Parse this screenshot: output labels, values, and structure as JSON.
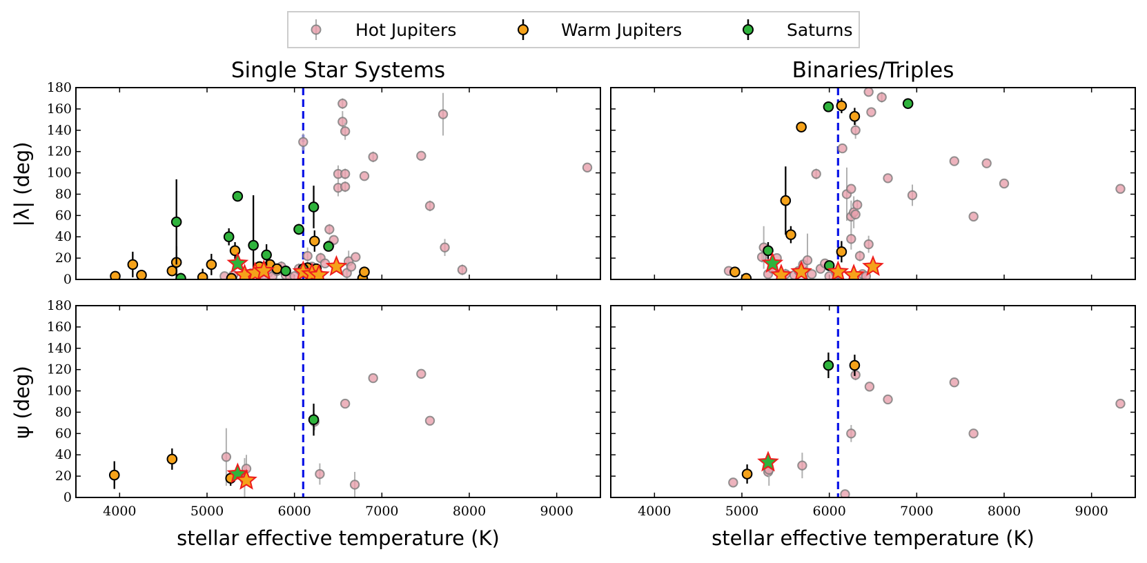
{
  "chart_data": {
    "type": "scatter",
    "legend": {
      "placement": "top-center",
      "entries": [
        {
          "key": "hot",
          "label": "Hot Jupiters",
          "color": "#e8a0ad"
        },
        {
          "key": "warm",
          "label": "Warm Jupiters",
          "color": "#f5a21a"
        },
        {
          "key": "sat",
          "label": "Saturns",
          "color": "#2fb33c"
        }
      ]
    },
    "xlabel": "stellar effective temperature (K)",
    "xlim": [
      3500,
      9500
    ],
    "xticks": [
      "4000",
      "5000",
      "6000",
      "7000",
      "8000",
      "9000"
    ],
    "ylim": [
      0,
      180
    ],
    "yticks": [
      "0",
      "20",
      "40",
      "60",
      "80",
      "100",
      "120",
      "140",
      "160",
      "180"
    ],
    "kraft_break_teff": 6100,
    "panels": [
      {
        "id": "single-lambda",
        "title": "Single Star Systems",
        "ylabel": "|λ| (deg)",
        "hot": [
          [
            5200,
            3,
            0
          ],
          [
            5300,
            4,
            0
          ],
          [
            5450,
            2,
            3
          ],
          [
            5500,
            4,
            0
          ],
          [
            5600,
            5,
            0
          ],
          [
            5650,
            2,
            0
          ],
          [
            5700,
            6,
            0
          ],
          [
            5750,
            3,
            0
          ],
          [
            5800,
            8,
            0
          ],
          [
            5850,
            12,
            5
          ],
          [
            5900,
            4,
            0
          ],
          [
            5950,
            2,
            0
          ],
          [
            6000,
            3,
            0
          ],
          [
            6050,
            10,
            5
          ],
          [
            6100,
            129,
            8
          ],
          [
            6150,
            22,
            8
          ],
          [
            6200,
            12,
            0
          ],
          [
            6250,
            8,
            0
          ],
          [
            6300,
            20,
            5
          ],
          [
            6350,
            15,
            0
          ],
          [
            6400,
            47,
            5
          ],
          [
            6400,
            32,
            0
          ],
          [
            6450,
            37,
            0
          ],
          [
            6500,
            86,
            8
          ],
          [
            6500,
            99,
            8
          ],
          [
            6550,
            148,
            10
          ],
          [
            6550,
            165,
            5
          ],
          [
            6580,
            139,
            8
          ],
          [
            6580,
            87,
            5
          ],
          [
            6580,
            99,
            5
          ],
          [
            6600,
            6,
            15
          ],
          [
            6620,
            17,
            10
          ],
          [
            6650,
            12,
            0
          ],
          [
            6700,
            21,
            0
          ],
          [
            6800,
            97,
            0
          ],
          [
            6900,
            115,
            5
          ],
          [
            7450,
            116,
            0
          ],
          [
            7550,
            69,
            5
          ],
          [
            7700,
            155,
            20
          ],
          [
            7720,
            30,
            8
          ],
          [
            7920,
            9,
            5
          ],
          [
            9350,
            105,
            0
          ]
        ],
        "warm": [
          [
            3950,
            3,
            0
          ],
          [
            4150,
            14,
            12
          ],
          [
            4250,
            4,
            0
          ],
          [
            4600,
            8,
            0
          ],
          [
            4650,
            16,
            15
          ],
          [
            4950,
            2,
            8
          ],
          [
            5050,
            14,
            10
          ],
          [
            5280,
            1,
            3
          ],
          [
            5320,
            27,
            8
          ],
          [
            5500,
            5,
            0
          ],
          [
            5600,
            12,
            0
          ],
          [
            5720,
            14,
            0
          ],
          [
            5800,
            10,
            0
          ],
          [
            6150,
            11,
            0
          ],
          [
            6230,
            36,
            10
          ],
          [
            6250,
            10,
            0
          ],
          [
            6780,
            1,
            0
          ],
          [
            6800,
            7,
            5
          ]
        ],
        "sat": [
          [
            4650,
            54,
            40
          ],
          [
            4700,
            1,
            5
          ],
          [
            5250,
            40,
            8
          ],
          [
            5350,
            78,
            0
          ],
          [
            5530,
            32,
            47
          ],
          [
            5680,
            23,
            10
          ],
          [
            5900,
            8,
            0
          ],
          [
            6050,
            47,
            5
          ],
          [
            6220,
            68,
            20
          ],
          [
            6390,
            31,
            0
          ],
          [
            6100,
            10,
            5
          ]
        ],
        "stars": [
          [
            5350,
            15,
            "sat"
          ],
          [
            5430,
            4,
            "warm"
          ],
          [
            5550,
            6,
            "warm"
          ],
          [
            5650,
            8,
            "warm"
          ],
          [
            6100,
            7,
            "warm"
          ],
          [
            6200,
            5,
            "warm"
          ],
          [
            6280,
            4,
            "warm"
          ],
          [
            6480,
            12,
            "warm"
          ]
        ]
      },
      {
        "id": "binary-lambda",
        "title": "Binaries/Triples",
        "ylabel": "",
        "hot": [
          [
            4850,
            8,
            0
          ],
          [
            5230,
            21,
            5
          ],
          [
            5250,
            30,
            20
          ],
          [
            5300,
            5,
            0
          ],
          [
            5350,
            10,
            5
          ],
          [
            5400,
            20,
            0
          ],
          [
            5500,
            5,
            5
          ],
          [
            5600,
            4,
            0
          ],
          [
            5650,
            8,
            0
          ],
          [
            5700,
            14,
            5
          ],
          [
            5750,
            18,
            25
          ],
          [
            5800,
            5,
            0
          ],
          [
            5850,
            99,
            5
          ],
          [
            5900,
            10,
            0
          ],
          [
            5950,
            15,
            0
          ],
          [
            6000,
            3,
            0
          ],
          [
            6080,
            6,
            0
          ],
          [
            6100,
            5,
            0
          ],
          [
            6150,
            123,
            0
          ],
          [
            6200,
            80,
            25
          ],
          [
            6250,
            85,
            0
          ],
          [
            6250,
            59,
            15
          ],
          [
            6250,
            38,
            10
          ],
          [
            6280,
            63,
            15
          ],
          [
            6300,
            140,
            8
          ],
          [
            6300,
            61,
            0
          ],
          [
            6320,
            70,
            5
          ],
          [
            6350,
            22,
            5
          ],
          [
            6380,
            5,
            0
          ],
          [
            6420,
            3,
            5
          ],
          [
            6450,
            33,
            8
          ],
          [
            6480,
            157,
            0
          ],
          [
            6500,
            12,
            0
          ],
          [
            6450,
            176,
            0
          ],
          [
            6600,
            171,
            5
          ],
          [
            6670,
            95,
            0
          ],
          [
            6950,
            79,
            10
          ],
          [
            7430,
            111,
            0
          ],
          [
            7650,
            59,
            0
          ],
          [
            7800,
            109,
            0
          ],
          [
            8000,
            90,
            0
          ],
          [
            9330,
            85,
            0
          ]
        ],
        "warm": [
          [
            4920,
            7,
            0
          ],
          [
            5050,
            1,
            0
          ],
          [
            5500,
            74,
            32
          ],
          [
            5560,
            42,
            8
          ],
          [
            5680,
            143,
            0
          ],
          [
            6140,
            163,
            7
          ],
          [
            6140,
            26,
            10
          ],
          [
            6290,
            153,
            8
          ]
        ],
        "sat": [
          [
            5300,
            27,
            8
          ],
          [
            6000,
            13,
            0
          ],
          [
            5990,
            162,
            0
          ],
          [
            6900,
            165,
            0
          ]
        ],
        "stars": [
          [
            5350,
            15,
            "sat"
          ],
          [
            5450,
            4,
            "warm"
          ],
          [
            5680,
            7,
            "warm"
          ],
          [
            6100,
            7,
            "warm"
          ],
          [
            6280,
            4,
            "warm"
          ],
          [
            6500,
            12,
            "warm"
          ]
        ]
      },
      {
        "id": "single-psi",
        "title": "",
        "ylabel": "ψ (deg)",
        "hot": [
          [
            5220,
            38,
            27
          ],
          [
            5430,
            17,
            20
          ],
          [
            5450,
            27,
            13
          ],
          [
            6230,
            71,
            8
          ],
          [
            6290,
            22,
            10
          ],
          [
            6580,
            88,
            0
          ],
          [
            6690,
            12,
            12
          ],
          [
            6900,
            112,
            0
          ],
          [
            7450,
            116,
            0
          ],
          [
            7550,
            72,
            0
          ]
        ],
        "warm": [
          [
            3940,
            21,
            13
          ],
          [
            4600,
            36,
            10
          ],
          [
            5270,
            18,
            7
          ]
        ],
        "sat": [
          [
            6220,
            73,
            15
          ]
        ],
        "stars": [
          [
            5350,
            22,
            "sat"
          ],
          [
            5450,
            16,
            "warm"
          ]
        ]
      },
      {
        "id": "binary-psi",
        "title": "",
        "ylabel": "",
        "hot": [
          [
            4900,
            14,
            0
          ],
          [
            5300,
            24,
            5
          ],
          [
            5310,
            26,
            15
          ],
          [
            5690,
            30,
            12
          ],
          [
            6180,
            3,
            0
          ],
          [
            6250,
            60,
            8
          ],
          [
            6300,
            115,
            5
          ],
          [
            6460,
            104,
            0
          ],
          [
            6670,
            92,
            0
          ],
          [
            7430,
            108,
            0
          ],
          [
            7650,
            60,
            0
          ],
          [
            9330,
            88,
            0
          ]
        ],
        "warm": [
          [
            5060,
            22,
            9
          ],
          [
            6290,
            124,
            10
          ]
        ],
        "sat": [
          [
            5990,
            124,
            12
          ]
        ],
        "stars": [
          [
            5300,
            33,
            "sat"
          ]
        ]
      }
    ]
  }
}
